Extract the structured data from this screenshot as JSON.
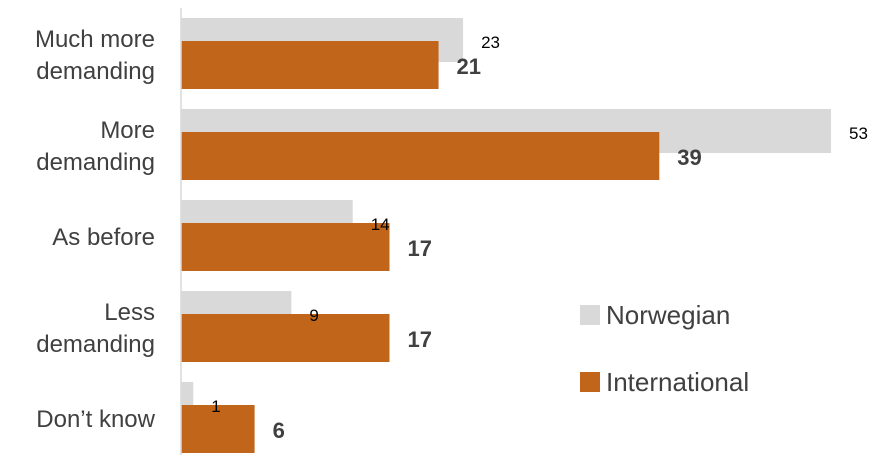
{
  "chart_data": {
    "type": "bar",
    "orientation": "horizontal",
    "categories": [
      [
        "Much more",
        "demanding"
      ],
      [
        "More",
        "demanding"
      ],
      [
        "As before"
      ],
      [
        "Less",
        "demanding"
      ],
      [
        "Don’t know"
      ]
    ],
    "series": [
      {
        "name": "Norwegian",
        "color": "#d9d9d9",
        "values": [
          23,
          53,
          14,
          9,
          1
        ]
      },
      {
        "name": "International",
        "color": "#c0651a",
        "values": [
          21,
          39,
          17,
          17,
          6
        ]
      }
    ],
    "xlim": [
      0,
      53
    ],
    "grid": false,
    "legend_position": "right",
    "title": "",
    "xlabel": "",
    "ylabel": ""
  }
}
